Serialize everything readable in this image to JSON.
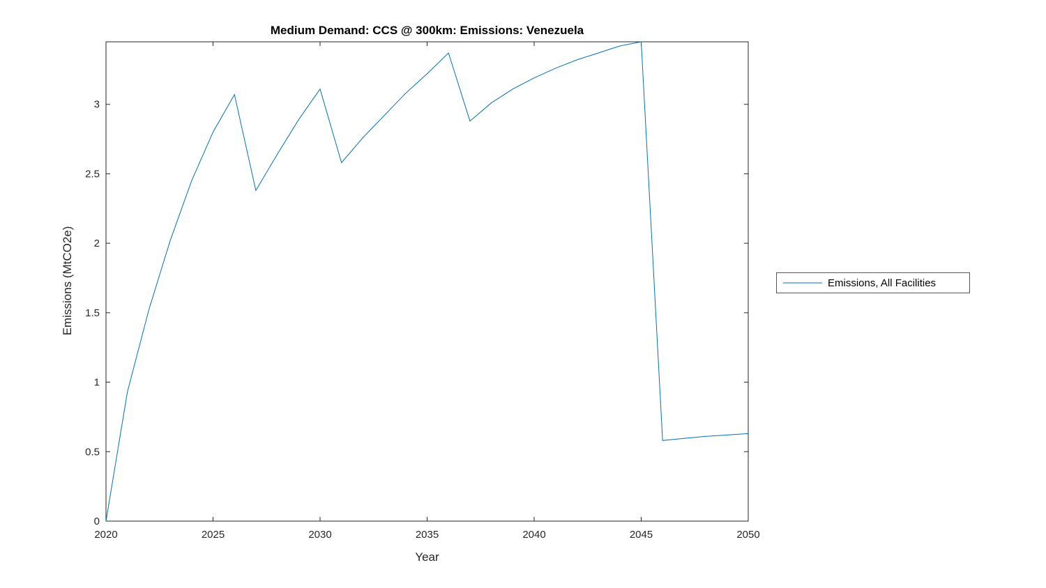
{
  "chart_data": {
    "type": "line",
    "title": "Medium Demand: CCS @ 300km: Emissions: Venezuela",
    "xlabel": "Year",
    "ylabel": "Emissions (MtCO2e)",
    "xlim": [
      2020,
      2050
    ],
    "ylim": [
      0,
      3.45
    ],
    "xticks": [
      2020,
      2025,
      2030,
      2035,
      2040,
      2045,
      2050
    ],
    "xtick_labels": [
      "2020",
      "2025",
      "2030",
      "2035",
      "2040",
      "2045",
      "2050"
    ],
    "yticks": [
      0,
      0.5,
      1,
      1.5,
      2,
      2.5,
      3
    ],
    "ytick_labels": [
      "0",
      "0.5",
      "1",
      "1.5",
      "2",
      "2.5",
      "3"
    ],
    "grid": false,
    "legend_position": "right-outside",
    "axis_color": "#262626",
    "background_color": "#ffffff",
    "x": [
      2020,
      2021,
      2022,
      2023,
      2024,
      2025,
      2026,
      2027,
      2028,
      2029,
      2030,
      2031,
      2032,
      2033,
      2034,
      2035,
      2036,
      2037,
      2038,
      2039,
      2040,
      2041,
      2042,
      2043,
      2044,
      2045,
      2046,
      2047,
      2048,
      2049,
      2050
    ],
    "series": [
      {
        "name": "Emissions, All Facilities",
        "color": "#0072BD",
        "values": [
          0,
          0.93,
          1.52,
          2.02,
          2.45,
          2.8,
          3.07,
          2.38,
          2.64,
          2.89,
          3.11,
          2.58,
          2.76,
          2.92,
          3.08,
          3.22,
          3.37,
          2.88,
          3.01,
          3.11,
          3.19,
          3.26,
          3.32,
          3.37,
          3.42,
          3.45,
          0.58,
          0.595,
          0.61,
          0.62,
          0.63
        ]
      }
    ]
  }
}
